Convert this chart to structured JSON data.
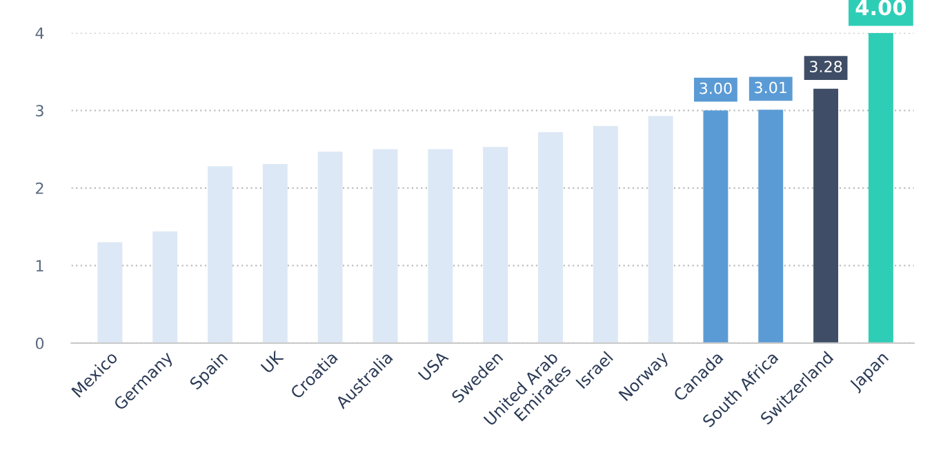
{
  "chart_data": {
    "type": "bar",
    "categories": [
      "Mexico",
      "Germany",
      "Spain",
      "UK",
      "Croatia",
      "Australia",
      "USA",
      "Sweden",
      "United Arab\nEmirates",
      "Israel",
      "Norway",
      "Canada",
      "South Africa",
      "Switzerland",
      "Japan"
    ],
    "values": [
      1.3,
      1.44,
      2.28,
      2.31,
      2.47,
      2.5,
      2.5,
      2.53,
      2.72,
      2.8,
      2.93,
      3.0,
      3.01,
      3.28,
      4.0
    ],
    "colors": [
      "#dce8f5",
      "#dce8f5",
      "#dce8f5",
      "#dce8f5",
      "#dce8f5",
      "#dce8f5",
      "#dce8f5",
      "#dce8f5",
      "#dce8f5",
      "#dce8f5",
      "#dce8f5",
      "#5b9bd5",
      "#5b9bd5",
      "#3f4e66",
      "#2ecdb6"
    ],
    "value_labels": [
      null,
      null,
      null,
      null,
      null,
      null,
      null,
      null,
      null,
      null,
      null,
      "3.00",
      "3.01",
      "3.28",
      "4.00"
    ],
    "ylim": [
      0,
      4
    ],
    "yticks": [
      0,
      1,
      2,
      3,
      4
    ],
    "grid": "y"
  }
}
